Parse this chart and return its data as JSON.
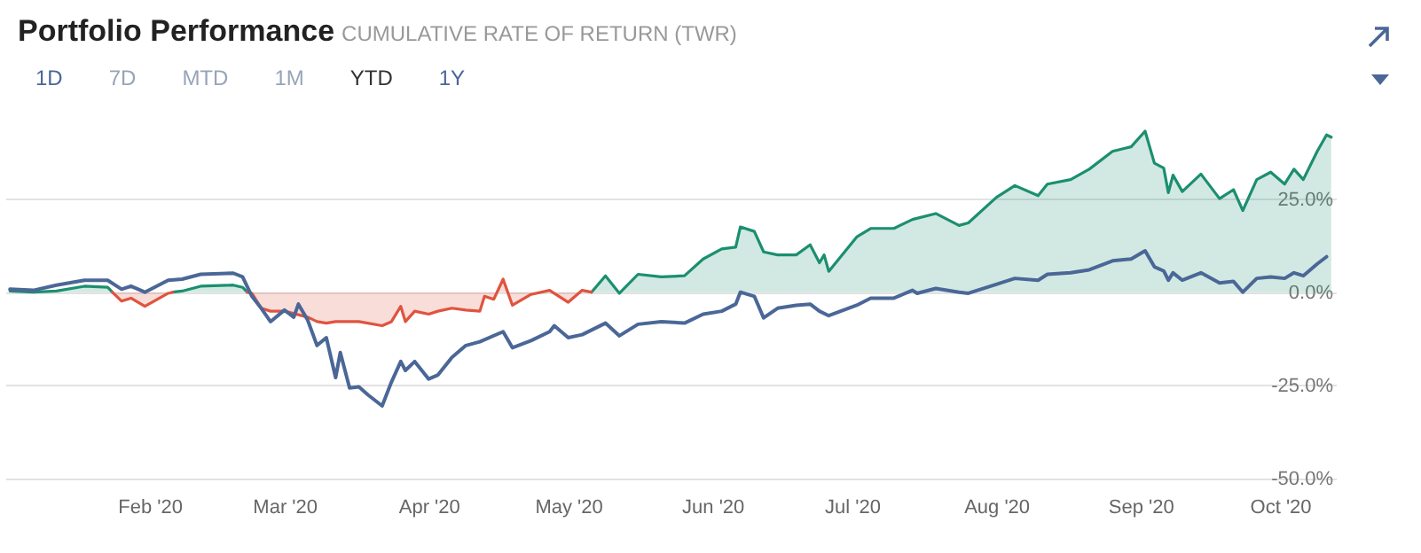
{
  "chart_data": {
    "type": "line",
    "title": "Portfolio Performance",
    "subtitle": "CUMULATIVE RATE OF RETURN (TWR)",
    "annotations": [
      "1D",
      "7D",
      "MTD",
      "1M",
      "YTD",
      "1Y"
    ],
    "x": [
      "2020-01-02",
      "2020-01-07",
      "2020-01-12",
      "2020-01-18",
      "2020-01-23",
      "2020-01-24",
      "2020-01-26",
      "2020-01-28",
      "2020-01-31",
      "2020-02-05",
      "2020-02-06",
      "2020-02-08",
      "2020-02-12",
      "2020-02-19",
      "2020-02-21",
      "2020-02-22",
      "2020-02-23",
      "2020-02-25",
      "2020-02-27",
      "2020-03-01",
      "2020-03-06",
      "2020-03-08",
      "2020-03-10",
      "2020-03-12",
      "2020-03-15",
      "2020-03-17",
      "2020-03-22",
      "2020-03-24",
      "2020-03-26",
      "2020-03-27",
      "2020-03-29",
      "2020-04-01",
      "2020-04-03",
      "2020-04-06",
      "2020-04-09",
      "2020-04-12",
      "2020-04-13",
      "2020-04-15",
      "2020-04-17",
      "2020-04-19",
      "2020-04-23",
      "2020-04-27",
      "2020-05-01",
      "2020-05-04",
      "2020-05-06",
      "2020-05-09",
      "2020-05-12",
      "2020-05-16",
      "2020-05-21",
      "2020-05-26",
      "2020-05-30",
      "2020-06-03",
      "2020-06-06",
      "2020-06-07",
      "2020-06-10",
      "2020-06-12",
      "2020-06-15",
      "2020-06-19",
      "2020-06-22",
      "2020-06-24",
      "2020-06-25",
      "2020-06-26",
      "2020-07-02",
      "2020-07-05",
      "2020-07-10",
      "2020-07-14",
      "2020-07-19",
      "2020-07-24",
      "2020-07-26",
      "2020-08-01",
      "2020-08-05",
      "2020-08-10",
      "2020-08-12",
      "2020-08-17",
      "2020-08-21",
      "2020-08-26",
      "2020-08-30",
      "2020-09-02",
      "2020-09-04",
      "2020-09-06",
      "2020-09-07",
      "2020-09-08",
      "2020-09-10",
      "2020-09-14",
      "2020-09-18",
      "2020-09-21",
      "2020-09-23",
      "2020-09-26",
      "2020-09-29",
      "2020-10-02",
      "2020-10-04",
      "2020-10-06",
      "2020-10-09",
      "2020-10-11",
      "2020-10-12"
    ],
    "series": [
      {
        "type": "area",
        "color": "#1b8f6f",
        "values": [
          0.3,
          0,
          0.3,
          1.6,
          1.3,
          0,
          null,
          null,
          null,
          null,
          0,
          0.3,
          1.6,
          1.9,
          1.3,
          0,
          null,
          null,
          null,
          null,
          null,
          null,
          null,
          null,
          null,
          null,
          null,
          null,
          null,
          null,
          null,
          null,
          null,
          null,
          null,
          null,
          null,
          null,
          null,
          null,
          null,
          null,
          null,
          null,
          0,
          4.4,
          -0.3,
          4.8,
          4.1,
          4.4,
          8.9,
          11.6,
          12.1,
          17.5,
          16.3,
          10.8,
          10,
          10,
          12.7,
          7.9,
          10,
          5.6,
          14.8,
          17.1,
          17.1,
          19.5,
          21.1,
          17.9,
          18.6,
          25.4,
          28.6,
          25.9,
          29,
          30.2,
          33,
          37.8,
          39,
          43.2,
          34.6,
          33.3,
          26.7,
          31.4,
          27,
          31.7,
          25.1,
          27.5,
          21.9,
          30.2,
          32.2,
          29,
          33,
          30.2,
          37.8,
          42.2,
          41.6
        ]
      },
      {
        "type": "area",
        "color": "#e0533f",
        "values": [
          null,
          null,
          null,
          null,
          null,
          0,
          -2.4,
          -1.6,
          -3.8,
          -0.3,
          0,
          null,
          null,
          null,
          null,
          0,
          -0.3,
          -4.3,
          -5.1,
          -5.1,
          -6.7,
          -7.9,
          -8.3,
          -7.9,
          -7.9,
          -7.9,
          -9,
          -7.9,
          -3.8,
          -7.9,
          -5.1,
          -5.9,
          -5.1,
          -4.3,
          -4.8,
          -5.1,
          -1.1,
          -1.9,
          3.5,
          -3.5,
          -0.6,
          0.5,
          -2.7,
          0.5,
          0,
          null,
          null,
          null,
          null,
          null,
          null,
          null,
          null,
          null,
          null,
          null,
          null,
          null,
          null,
          null,
          null,
          null,
          null,
          null,
          null,
          null,
          null,
          null,
          null,
          null,
          null,
          null,
          null,
          null,
          null,
          null,
          null,
          null,
          null,
          null,
          null,
          null,
          null,
          null,
          null,
          null,
          null,
          null,
          null,
          null,
          null,
          null,
          null,
          null,
          null
        ]
      },
      {
        "type": "line",
        "color": "#4a6797",
        "x": [
          "2020-01-02",
          "2020-01-07",
          "2020-01-12",
          "2020-01-18",
          "2020-01-23",
          "2020-01-26",
          "2020-01-28",
          "2020-01-31",
          "2020-02-05",
          "2020-02-08",
          "2020-02-12",
          "2020-02-19",
          "2020-02-21",
          "2020-02-23",
          "2020-02-25",
          "2020-02-27",
          "2020-03-01",
          "2020-03-03",
          "2020-03-04",
          "2020-03-06",
          "2020-03-08",
          "2020-03-10",
          "2020-03-12",
          "2020-03-13",
          "2020-03-15",
          "2020-03-17",
          "2020-03-19",
          "2020-03-22",
          "2020-03-24",
          "2020-03-26",
          "2020-03-27",
          "2020-03-29",
          "2020-04-01",
          "2020-04-03",
          "2020-04-06",
          "2020-04-09",
          "2020-04-12",
          "2020-04-17",
          "2020-04-19",
          "2020-04-23",
          "2020-04-27",
          "2020-04-28",
          "2020-05-01",
          "2020-05-04",
          "2020-05-09",
          "2020-05-12",
          "2020-05-16",
          "2020-05-21",
          "2020-05-26",
          "2020-05-30",
          "2020-06-03",
          "2020-06-06",
          "2020-06-07",
          "2020-06-10",
          "2020-06-12",
          "2020-06-15",
          "2020-06-19",
          "2020-06-22",
          "2020-06-24",
          "2020-06-26",
          "2020-07-02",
          "2020-07-05",
          "2020-07-10",
          "2020-07-14",
          "2020-07-15",
          "2020-07-19",
          "2020-07-24",
          "2020-07-26",
          "2020-08-01",
          "2020-08-05",
          "2020-08-10",
          "2020-08-12",
          "2020-08-17",
          "2020-08-21",
          "2020-08-26",
          "2020-08-30",
          "2020-09-02",
          "2020-09-04",
          "2020-09-06",
          "2020-09-07",
          "2020-09-08",
          "2020-09-10",
          "2020-09-14",
          "2020-09-18",
          "2020-09-21",
          "2020-09-23",
          "2020-09-26",
          "2020-09-29",
          "2020-10-02",
          "2020-10-04",
          "2020-10-06",
          "2020-10-09",
          "2020-10-11"
        ],
        "values": [
          0.8,
          0.5,
          1.9,
          3.2,
          3.2,
          0.8,
          1.6,
          0,
          3.2,
          3.5,
          4.8,
          5.1,
          4.1,
          -1.1,
          -4.3,
          -7.9,
          -4.8,
          -6.7,
          -3.2,
          -7.5,
          -14.3,
          -12.2,
          -22.9,
          -16.2,
          -25.7,
          -25.4,
          -27.6,
          -30.5,
          -24.1,
          -18.6,
          -21,
          -18.6,
          -23.3,
          -22.2,
          -17.5,
          -14.3,
          -13.3,
          -10.6,
          -14.9,
          -13,
          -10.6,
          -9,
          -12.2,
          -11.4,
          -8.3,
          -11.7,
          -8.6,
          -7.9,
          -8.3,
          -5.9,
          -5.1,
          -3.2,
          0,
          -1.1,
          -6.9,
          -4.3,
          -3.5,
          -3.2,
          -5.1,
          -6.3,
          -3.5,
          -1.6,
          -1.6,
          0.5,
          -0.3,
          1,
          0,
          -0.3,
          2.1,
          3.7,
          3.2,
          4.8,
          5.2,
          6,
          8.4,
          8.9,
          11.1,
          6.8,
          5.7,
          3.2,
          5.2,
          3.2,
          5.2,
          2.5,
          2.9,
          0,
          3.7,
          4.1,
          3.7,
          5.2,
          4.4,
          7.6,
          9.5
        ]
      }
    ],
    "xlim": [
      "2020-01-01",
      "2020-10-13"
    ],
    "xticks": [
      {
        "value": "2020-02-01",
        "label": "Feb '20"
      },
      {
        "value": "2020-03-01",
        "label": "Mar '20"
      },
      {
        "value": "2020-04-01",
        "label": "Apr '20"
      },
      {
        "value": "2020-05-01",
        "label": "May '20"
      },
      {
        "value": "2020-06-01",
        "label": "Jun '20"
      },
      {
        "value": "2020-07-01",
        "label": "Jul '20"
      },
      {
        "value": "2020-08-01",
        "label": "Aug '20"
      },
      {
        "value": "2020-09-01",
        "label": "Sep '20"
      },
      {
        "value": "2020-10-01",
        "label": "Oct '20"
      }
    ],
    "ylim": [
      -50,
      47
    ],
    "yticks": [
      {
        "value": -50,
        "label": "-50.0%"
      },
      {
        "value": -25,
        "label": "-25.0%"
      },
      {
        "value": 0,
        "label": "0.0%"
      },
      {
        "value": 25,
        "label": "25.0%"
      }
    ],
    "grid": "y",
    "legend": false,
    "marker": "none",
    "line_style": "solid"
  }
}
